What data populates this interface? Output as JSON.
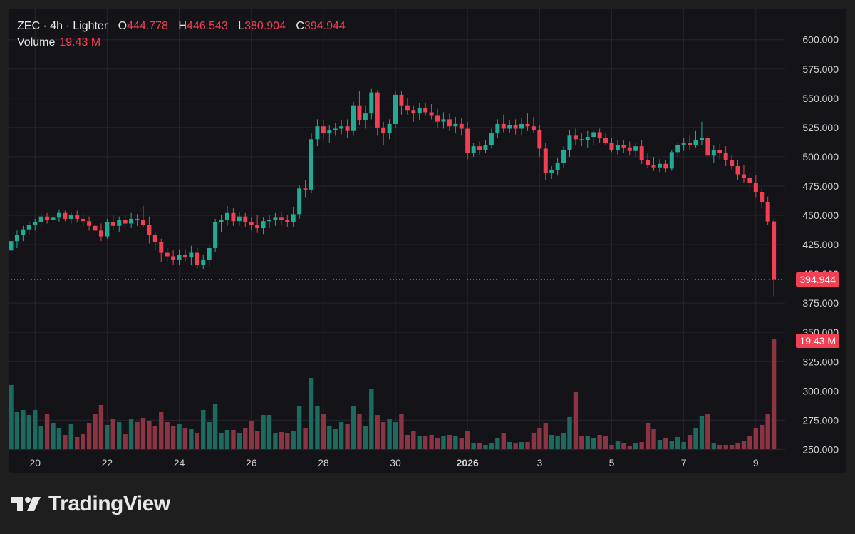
{
  "legend": {
    "symbol": "ZEC",
    "interval": "4h",
    "exchange": "Lighter",
    "header": "ZEC · 4h · Lighter",
    "open_label": "O",
    "open": "444.778",
    "high_label": "H",
    "high": "446.543",
    "low_label": "L",
    "low": "380.904",
    "close_label": "C",
    "close": "394.944",
    "volume_label": "Volume",
    "volume": "19.43 M"
  },
  "last_price_tag": "394.944",
  "last_volume_tag": "19.43 M",
  "brand": {
    "name": "TradingView"
  },
  "colors": {
    "background": "#141318",
    "up": "#22ab94",
    "down": "#f23f52",
    "up_volume": "#1c6b5e",
    "down_volume": "#8c3443",
    "grid": "#26252c",
    "axis_text": "#d0d0d0",
    "price_line": "#f23f52"
  },
  "chart_data": {
    "type": "candlestick",
    "title": "",
    "y_axis": {
      "ticks": [
        "600.000",
        "575.000",
        "550.000",
        "525.000",
        "500.000",
        "475.000",
        "450.000",
        "425.000",
        "400.000",
        "375.000",
        "350.000",
        "325.000",
        "300.000",
        "275.000",
        "250.000"
      ],
      "range": [
        246,
        612
      ]
    },
    "x_axis": {
      "ticks": [
        {
          "label": "20",
          "bar": 4
        },
        {
          "label": "22",
          "bar": 16
        },
        {
          "label": "24",
          "bar": 28
        },
        {
          "label": "26",
          "bar": 40
        },
        {
          "label": "28",
          "bar": 52
        },
        {
          "label": "30",
          "bar": 64
        },
        {
          "label": "2026",
          "bar": 76,
          "bold": true
        },
        {
          "label": "3",
          "bar": 88
        },
        {
          "label": "5",
          "bar": 100
        },
        {
          "label": "7",
          "bar": 112
        },
        {
          "label": "9",
          "bar": 124
        }
      ]
    },
    "grid": true,
    "last_price": 394.944,
    "candles": [
      [
        420,
        433,
        410,
        428,
        0.9
      ],
      [
        428,
        437,
        422,
        433,
        0.52
      ],
      [
        433,
        441,
        428,
        438,
        0.55
      ],
      [
        438,
        445,
        433,
        442,
        0.48
      ],
      [
        442,
        447,
        437,
        444,
        0.55
      ],
      [
        444,
        452,
        440,
        449,
        0.32
      ],
      [
        449,
        452,
        443,
        446,
        0.5
      ],
      [
        446,
        452,
        442,
        448,
        0.37
      ],
      [
        448,
        455,
        444,
        452,
        0.3
      ],
      [
        452,
        454,
        445,
        447,
        0.2
      ],
      [
        447,
        453,
        443,
        450,
        0.35
      ],
      [
        450,
        454,
        444,
        447,
        0.17
      ],
      [
        447,
        452,
        440,
        445,
        0.21
      ],
      [
        445,
        449,
        437,
        441,
        0.36
      ],
      [
        441,
        444,
        433,
        437,
        0.5
      ],
      [
        437,
        443,
        428,
        432,
        0.62
      ],
      [
        432,
        447,
        430,
        444,
        0.34
      ],
      [
        444,
        450,
        438,
        441,
        0.42
      ],
      [
        441,
        449,
        436,
        446,
        0.38
      ],
      [
        446,
        450,
        440,
        443,
        0.21
      ],
      [
        443,
        452,
        439,
        447,
        0.42
      ],
      [
        447,
        451,
        441,
        446,
        0.38
      ],
      [
        446,
        458,
        440,
        442,
        0.44
      ],
      [
        442,
        449,
        426,
        433,
        0.4
      ],
      [
        433,
        436,
        420,
        427,
        0.33
      ],
      [
        427,
        430,
        410,
        418,
        0.52
      ],
      [
        418,
        422,
        410,
        415,
        0.38
      ],
      [
        415,
        420,
        408,
        412,
        0.32
      ],
      [
        412,
        421,
        408,
        416,
        0.35
      ],
      [
        416,
        421,
        411,
        414,
        0.3
      ],
      [
        414,
        424,
        408,
        418,
        0.28
      ],
      [
        418,
        422,
        404,
        408,
        0.22
      ],
      [
        408,
        416,
        404,
        412,
        0.55
      ],
      [
        412,
        425,
        406,
        422,
        0.38
      ],
      [
        422,
        447,
        419,
        444,
        0.63
      ],
      [
        444,
        450,
        436,
        446,
        0.23
      ],
      [
        446,
        458,
        441,
        452,
        0.27
      ],
      [
        452,
        456,
        441,
        445,
        0.27
      ],
      [
        445,
        453,
        441,
        449,
        0.23
      ],
      [
        449,
        452,
        440,
        444,
        0.3
      ],
      [
        444,
        448,
        437,
        442,
        0.4
      ],
      [
        442,
        450,
        435,
        439,
        0.25
      ],
      [
        439,
        448,
        434,
        445,
        0.48
      ],
      [
        445,
        450,
        439,
        446,
        0.48
      ],
      [
        446,
        452,
        441,
        448,
        0.22
      ],
      [
        448,
        453,
        442,
        446,
        0.24
      ],
      [
        446,
        450,
        440,
        444,
        0.22
      ],
      [
        444,
        457,
        440,
        451,
        0.26
      ],
      [
        451,
        476,
        447,
        473,
        0.6
      ],
      [
        473,
        480,
        465,
        472,
        0.3
      ],
      [
        472,
        520,
        469,
        515,
        1.0
      ],
      [
        515,
        532,
        509,
        526,
        0.6
      ],
      [
        526,
        531,
        515,
        520,
        0.5
      ],
      [
        520,
        527,
        512,
        523,
        0.33
      ],
      [
        523,
        529,
        518,
        524,
        0.28
      ],
      [
        524,
        531,
        519,
        526,
        0.38
      ],
      [
        526,
        532,
        516,
        522,
        0.35
      ],
      [
        522,
        547,
        518,
        544,
        0.6
      ],
      [
        544,
        556,
        527,
        531,
        0.5
      ],
      [
        531,
        544,
        524,
        537,
        0.33
      ],
      [
        537,
        558,
        532,
        555,
        0.85
      ],
      [
        555,
        557,
        518,
        525,
        0.48
      ],
      [
        525,
        530,
        510,
        520,
        0.38
      ],
      [
        520,
        532,
        515,
        528,
        0.43
      ],
      [
        528,
        556,
        525,
        553,
        0.38
      ],
      [
        553,
        556,
        536,
        544,
        0.5
      ],
      [
        544,
        550,
        536,
        540,
        0.2
      ],
      [
        540,
        544,
        530,
        537,
        0.25
      ],
      [
        537,
        546,
        531,
        542,
        0.18
      ],
      [
        542,
        546,
        535,
        538,
        0.18
      ],
      [
        538,
        545,
        532,
        535,
        0.2
      ],
      [
        535,
        541,
        525,
        530,
        0.15
      ],
      [
        530,
        538,
        524,
        532,
        0.18
      ],
      [
        532,
        537,
        522,
        526,
        0.2
      ],
      [
        526,
        534,
        520,
        528,
        0.18
      ],
      [
        528,
        533,
        518,
        524,
        0.15
      ],
      [
        524,
        530,
        498,
        503,
        0.25
      ],
      [
        503,
        512,
        500,
        509,
        0.09
      ],
      [
        509,
        513,
        502,
        506,
        0.08
      ],
      [
        506,
        514,
        503,
        510,
        0.06
      ],
      [
        510,
        524,
        507,
        520,
        0.08
      ],
      [
        520,
        532,
        516,
        528,
        0.15
      ],
      [
        528,
        536,
        521,
        524,
        0.22
      ],
      [
        524,
        531,
        520,
        527,
        0.1
      ],
      [
        527,
        532,
        519,
        524,
        0.09
      ],
      [
        524,
        533,
        518,
        528,
        0.1
      ],
      [
        528,
        537,
        522,
        526,
        0.1
      ],
      [
        526,
        534,
        520,
        523,
        0.22
      ],
      [
        523,
        527,
        500,
        507,
        0.3
      ],
      [
        507,
        512,
        480,
        486,
        0.37
      ],
      [
        486,
        492,
        481,
        489,
        0.2
      ],
      [
        489,
        499,
        484,
        495,
        0.18
      ],
      [
        495,
        509,
        490,
        506,
        0.22
      ],
      [
        506,
        523,
        500,
        518,
        0.45
      ],
      [
        518,
        524,
        510,
        515,
        0.8
      ],
      [
        515,
        520,
        509,
        514,
        0.18
      ],
      [
        514,
        522,
        508,
        517,
        0.18
      ],
      [
        517,
        523,
        510,
        521,
        0.15
      ],
      [
        521,
        524,
        512,
        516,
        0.2
      ],
      [
        516,
        520,
        510,
        512,
        0.18
      ],
      [
        512,
        516,
        504,
        506,
        0.06
      ],
      [
        506,
        514,
        502,
        510,
        0.12
      ],
      [
        510,
        514,
        503,
        508,
        0.08
      ],
      [
        508,
        513,
        501,
        505,
        0.05
      ],
      [
        505,
        512,
        500,
        509,
        0.08
      ],
      [
        509,
        514,
        494,
        497,
        0.1
      ],
      [
        497,
        503,
        490,
        493,
        0.36
      ],
      [
        493,
        500,
        488,
        491,
        0.28
      ],
      [
        491,
        498,
        487,
        494,
        0.13
      ],
      [
        494,
        497,
        487,
        490,
        0.15
      ],
      [
        490,
        506,
        488,
        504,
        0.12
      ],
      [
        504,
        512,
        500,
        510,
        0.17
      ],
      [
        510,
        516,
        505,
        512,
        0.1
      ],
      [
        512,
        518,
        506,
        510,
        0.2
      ],
      [
        510,
        522,
        508,
        514,
        0.3
      ],
      [
        514,
        530,
        510,
        516,
        0.47
      ],
      [
        516,
        519,
        497,
        501,
        0.5
      ],
      [
        501,
        510,
        495,
        506,
        0.09
      ],
      [
        506,
        511,
        498,
        503,
        0.06
      ],
      [
        503,
        509,
        492,
        497,
        0.06
      ],
      [
        497,
        502,
        489,
        492,
        0.06
      ],
      [
        492,
        497,
        480,
        485,
        0.09
      ],
      [
        485,
        493,
        478,
        482,
        0.12
      ],
      [
        482,
        487,
        472,
        478,
        0.18
      ],
      [
        478,
        484,
        465,
        470,
        0.29
      ],
      [
        470,
        473,
        456,
        461,
        0.34
      ],
      [
        461,
        466,
        442,
        444.778,
        0.5
      ],
      [
        444.778,
        446.543,
        380.904,
        394.944,
        1.55
      ]
    ]
  }
}
